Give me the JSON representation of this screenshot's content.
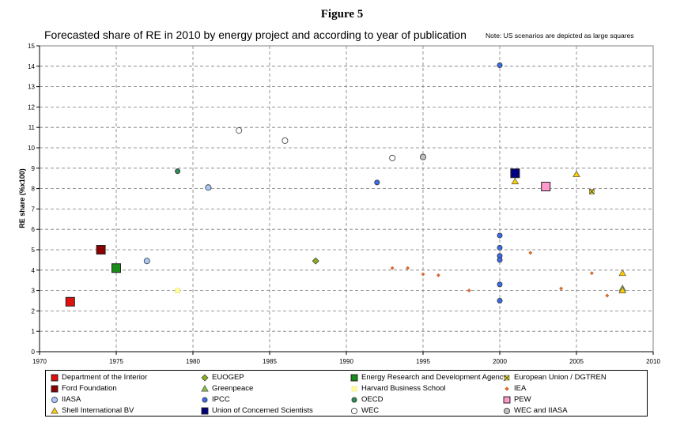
{
  "figure_label": "Figure 5",
  "note": "Note: US scenarios are depicted as large squares",
  "chart_data": {
    "type": "scatter",
    "title": "Forecasted share of RE in 2010 by energy project and according to year of publication",
    "xlabel": "",
    "ylabel": "RE share (%x100)",
    "xlim": [
      1970,
      2010
    ],
    "ylim": [
      0,
      15
    ],
    "x_ticks": [
      "1970",
      "1975",
      "1980",
      "1985",
      "1990",
      "1995",
      "2000",
      "2005",
      "2010"
    ],
    "y_ticks": [
      "0",
      "1",
      "2",
      "3",
      "4",
      "5",
      "6",
      "7",
      "8",
      "9",
      "10",
      "11",
      "12",
      "13",
      "14",
      "15"
    ],
    "grid": true,
    "legend_position": "bottom",
    "series": [
      {
        "name": "Department of the Interior",
        "marker": "square-large",
        "color": "#e01010",
        "points": [
          [
            1972,
            2.45
          ]
        ]
      },
      {
        "name": "EUOGEP",
        "marker": "diamond",
        "color": "#8ab020",
        "points": [
          [
            1988,
            4.45
          ]
        ]
      },
      {
        "name": "Energy Research and Development Agency",
        "marker": "square-large",
        "color": "#1a8c1a",
        "points": [
          [
            1975,
            4.1
          ]
        ]
      },
      {
        "name": "European Union / DGTREN",
        "marker": "cross-square",
        "color": "#f0e020",
        "points": [
          [
            2006,
            7.85
          ]
        ]
      },
      {
        "name": "Ford Foundation",
        "marker": "square-large",
        "color": "#8b0000",
        "points": [
          [
            1974,
            5.0
          ]
        ]
      },
      {
        "name": "Greenpeace",
        "marker": "triangle",
        "color": "#80c040",
        "points": [
          [
            2008,
            3.1
          ]
        ]
      },
      {
        "name": "Harvard Business School",
        "marker": "square",
        "color": "#ffff99",
        "points": [
          [
            1979,
            3.0
          ]
        ]
      },
      {
        "name": "IEA",
        "marker": "diamond-small",
        "color": "#e07030",
        "points": [
          [
            1993,
            4.1
          ],
          [
            1994,
            4.1
          ],
          [
            1995,
            3.8
          ],
          [
            1996,
            3.75
          ],
          [
            1998,
            3.0
          ],
          [
            2002,
            4.85
          ],
          [
            2004,
            3.1
          ],
          [
            2006,
            3.85
          ],
          [
            2007,
            2.75
          ]
        ]
      },
      {
        "name": "IIASA",
        "marker": "circle",
        "color": "#a8c8f8",
        "points": [
          [
            1977,
            4.45
          ],
          [
            1981,
            8.05
          ]
        ]
      },
      {
        "name": "IPCC",
        "marker": "circle",
        "color": "#3a6ee8",
        "points": [
          [
            1992,
            8.3
          ],
          [
            2000,
            14.05
          ],
          [
            2000,
            5.7
          ],
          [
            2000,
            5.1
          ],
          [
            2000,
            4.7
          ],
          [
            2000,
            4.5
          ],
          [
            2000,
            3.3
          ],
          [
            2000,
            2.5
          ]
        ]
      },
      {
        "name": "OECD",
        "marker": "circle",
        "color": "#2e8b57",
        "points": [
          [
            1979,
            8.85
          ]
        ]
      },
      {
        "name": "PEW",
        "marker": "square-large",
        "color": "#ff99cc",
        "points": [
          [
            2003,
            8.1
          ]
        ]
      },
      {
        "name": "Shell International BV",
        "marker": "triangle",
        "color": "#ffcc00",
        "points": [
          [
            2001,
            8.35
          ],
          [
            2005,
            8.7
          ],
          [
            2008,
            3.85
          ],
          [
            2008,
            3.0
          ]
        ]
      },
      {
        "name": "Union of Concerned Scientists",
        "marker": "square-large",
        "color": "#000080",
        "points": [
          [
            2001,
            8.75
          ]
        ]
      },
      {
        "name": "WEC",
        "marker": "circle",
        "color": "#ffffff",
        "points": [
          [
            1983,
            10.85
          ],
          [
            1986,
            10.35
          ],
          [
            1993,
            9.5
          ]
        ]
      },
      {
        "name": "WEC and IIASA",
        "marker": "circle",
        "color": "#c0c0c0",
        "points": [
          [
            1995,
            9.55
          ]
        ]
      }
    ]
  }
}
